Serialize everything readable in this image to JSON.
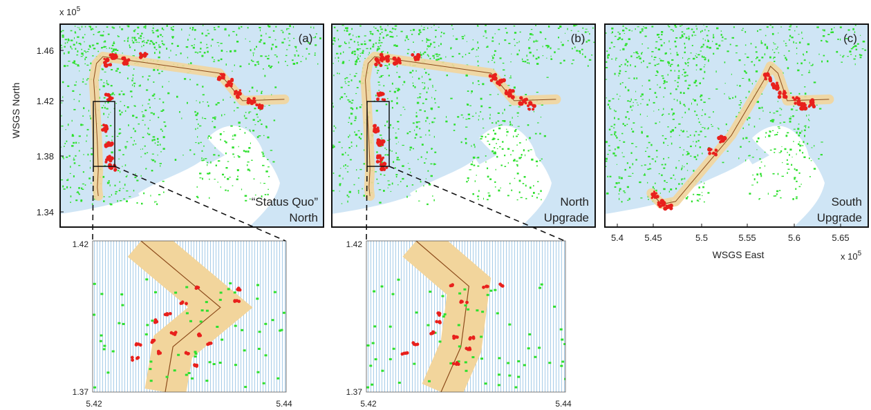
{
  "figure": {
    "y_axis_label": "WSGS North",
    "x_axis_label": "WSGS East",
    "y_exponent": "x 10",
    "y_exponent_power": "5",
    "x_exponent": "x 10",
    "x_exponent_power": "5",
    "colors": {
      "water": "#cfe5f5",
      "land": "#ffffff",
      "vegetation": "#2ee02e",
      "corridor": "#f2d59c",
      "route": "#8b4a1a",
      "hits": "#e8201c",
      "frame": "#111111"
    }
  },
  "chart_data": [
    {
      "type": "scatter",
      "panel_label": "(a)",
      "caption_lines": [
        "“Status Quo”",
        "North"
      ],
      "y_ticks": [
        "1.46",
        "1.42",
        "1.38",
        "1.34"
      ],
      "x_ticks": [],
      "y_tick_values": [
        1.46,
        1.42,
        1.38,
        1.34
      ],
      "route": [
        [
          5.425,
          1.356
        ],
        [
          5.424,
          1.362
        ],
        [
          5.425,
          1.375
        ],
        [
          5.424,
          1.395
        ],
        [
          5.422,
          1.42
        ],
        [
          5.42,
          1.44
        ],
        [
          5.423,
          1.452
        ],
        [
          5.43,
          1.457
        ],
        [
          5.555,
          1.445
        ],
        [
          5.58,
          1.425
        ],
        [
          5.625,
          1.426
        ]
      ],
      "inset_box": {
        "x": [
          5.42,
          5.44
        ],
        "y": [
          1.372,
          1.42
        ]
      }
    },
    {
      "type": "scatter",
      "panel_label": "(b)",
      "caption_lines": [
        "North",
        "Upgrade"
      ],
      "y_ticks": [],
      "x_ticks": [],
      "route": [
        [
          5.425,
          1.356
        ],
        [
          5.424,
          1.362
        ],
        [
          5.425,
          1.375
        ],
        [
          5.424,
          1.395
        ],
        [
          5.422,
          1.42
        ],
        [
          5.42,
          1.44
        ],
        [
          5.423,
          1.452
        ],
        [
          5.43,
          1.457
        ],
        [
          5.555,
          1.445
        ],
        [
          5.58,
          1.425
        ],
        [
          5.625,
          1.426
        ]
      ],
      "inset_box": {
        "x": [
          5.42,
          5.44
        ],
        "y": [
          1.372,
          1.42
        ]
      }
    },
    {
      "type": "scatter",
      "panel_label": "(c)",
      "caption_lines": [
        "South",
        "Upgrade"
      ],
      "y_ticks": [],
      "x_ticks": [
        "5.4",
        "5.45",
        "5.5",
        "5.55",
        "5.6",
        "5.65"
      ],
      "x_tick_values": [
        5.4,
        5.45,
        5.5,
        5.55,
        5.6,
        5.65
      ],
      "route": [
        [
          5.434,
          1.358
        ],
        [
          5.445,
          1.35
        ],
        [
          5.46,
          1.352
        ],
        [
          5.52,
          1.4
        ],
        [
          5.555,
          1.44
        ],
        [
          5.562,
          1.45
        ],
        [
          5.57,
          1.445
        ],
        [
          5.58,
          1.425
        ],
        [
          5.625,
          1.426
        ]
      ]
    },
    {
      "type": "scatter",
      "panel_label": "inset-a",
      "x_ticks": [
        "5.42",
        "5.44"
      ],
      "y_ticks": [
        "1.42",
        "1.37"
      ],
      "xlim": [
        5.42,
        5.44
      ],
      "ylim": [
        1.37,
        1.42
      ],
      "route": [
        [
          5.4275,
          1.37
        ],
        [
          5.4283,
          1.385
        ],
        [
          5.4332,
          1.398
        ],
        [
          5.425,
          1.42
        ]
      ]
    },
    {
      "type": "scatter",
      "panel_label": "inset-b",
      "x_ticks": [
        "5.42",
        "5.44"
      ],
      "y_ticks": [
        "1.42",
        "1.37"
      ],
      "xlim": [
        5.42,
        5.44
      ],
      "ylim": [
        1.37,
        1.42
      ],
      "route": [
        [
          5.4275,
          1.37
        ],
        [
          5.4295,
          1.385
        ],
        [
          5.4303,
          1.405
        ],
        [
          5.425,
          1.42
        ]
      ]
    }
  ]
}
